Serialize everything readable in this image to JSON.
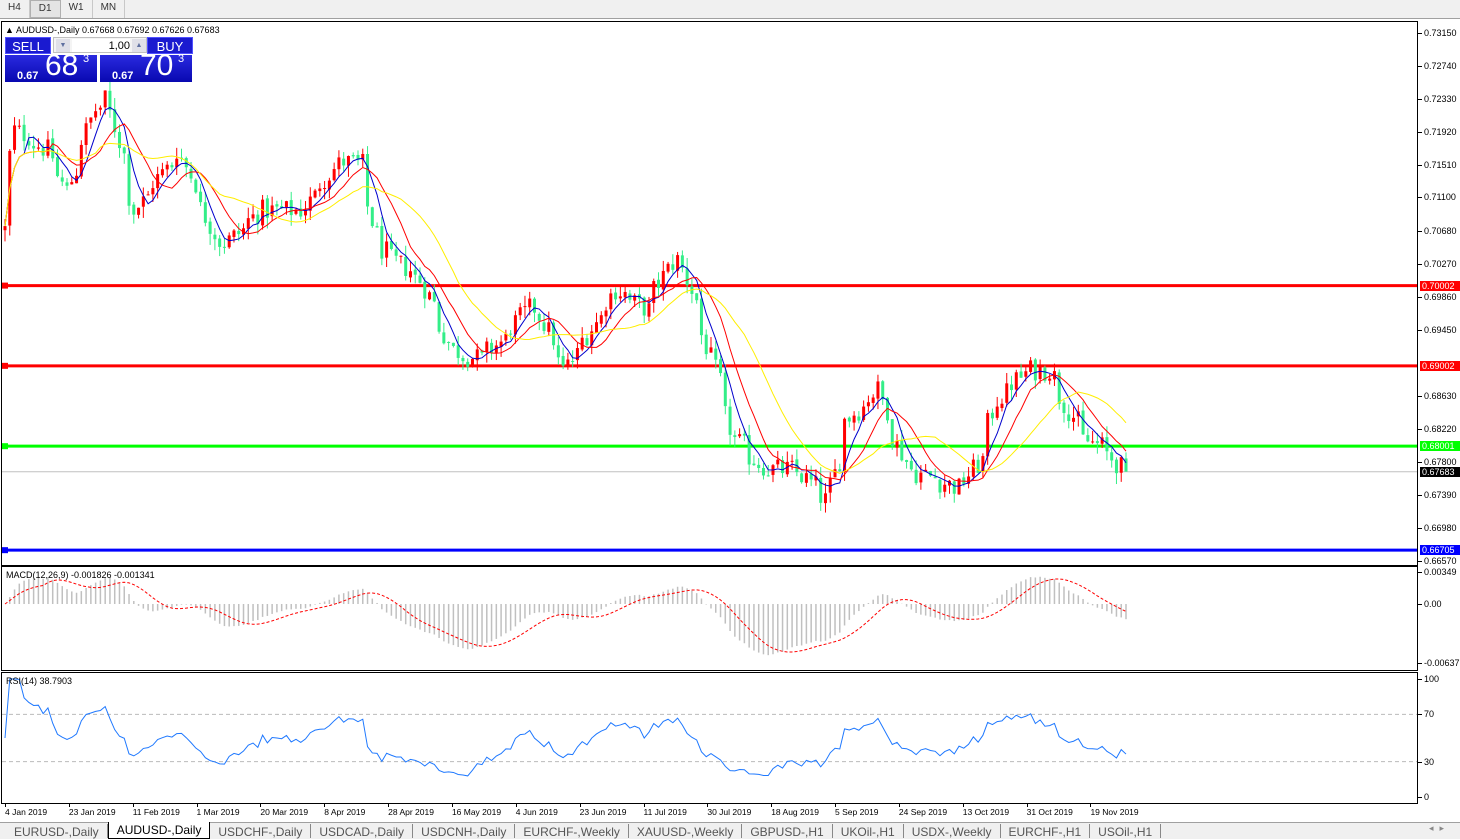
{
  "toolbar": {
    "timeframes": [
      "H4",
      "D1",
      "W1",
      "MN"
    ],
    "active": "D1"
  },
  "chart": {
    "title": "AUDUSD-,Daily  0.67668 0.67692 0.67626 0.67683",
    "price_ticks": [
      "0.73150",
      "0.72740",
      "0.72330",
      "0.71920",
      "0.71510",
      "0.71100",
      "0.70680",
      "0.70270",
      "0.69860",
      "0.69450",
      "0.68630",
      "0.68220",
      "0.67800",
      "0.67390",
      "0.66980",
      "0.66570"
    ],
    "price_tick_values": [
      0.7315,
      0.7274,
      0.7233,
      0.7192,
      0.7151,
      0.711,
      0.7068,
      0.7027,
      0.6986,
      0.6945,
      0.6863,
      0.6822,
      0.678,
      0.6739,
      0.6698,
      0.6657
    ],
    "levels": [
      {
        "label": "0.70002",
        "value": 0.70002,
        "color": "#ff0000"
      },
      {
        "label": "0.69002",
        "value": 0.69002,
        "color": "#ff0000"
      },
      {
        "label": "0.68001",
        "value": 0.68001,
        "color": "#00ff00"
      },
      {
        "label": "0.66705",
        "value": 0.66705,
        "color": "#0000ff"
      }
    ],
    "current_price": {
      "label": "0.67683",
      "value": 0.67683
    },
    "date_labels": [
      "4 Jan 2019",
      "23 Jan 2019",
      "11 Feb 2019",
      "1 Mar 2019",
      "20 Mar 2019",
      "8 Apr 2019",
      "28 Apr 2019",
      "16 May 2019",
      "4 Jun 2019",
      "23 Jun 2019",
      "11 Jul 2019",
      "30 Jul 2019",
      "18 Aug 2019",
      "5 Sep 2019",
      "24 Sep 2019",
      "13 Oct 2019",
      "31 Oct 2019",
      "19 Nov 2019"
    ],
    "colors": {
      "up": "#ff0000",
      "down": "#33ee88",
      "ma_fast": "#0000cc",
      "ma_mid": "#ff0000",
      "ma_slow": "#ffee00"
    }
  },
  "chart_data": {
    "type": "candlestick",
    "close_path": [
      [
        "2019-01-04",
        0.707
      ],
      [
        "2019-01-08",
        0.7194
      ],
      [
        "2019-01-17",
        0.7169
      ],
      [
        "2019-01-23",
        0.7119
      ],
      [
        "2019-01-31",
        0.7219
      ],
      [
        "2019-02-04",
        0.7232
      ],
      [
        "2019-02-12",
        0.7094
      ],
      [
        "2019-02-25",
        0.7169
      ],
      [
        "2019-03-09",
        0.7045
      ],
      [
        "2019-03-21",
        0.7094
      ],
      [
        "2019-04-02",
        0.7094
      ],
      [
        "2019-04-13",
        0.7157
      ],
      [
        "2019-04-19",
        0.7151
      ],
      [
        "2019-04-25",
        0.7045
      ],
      [
        "2019-05-07",
        0.7007
      ],
      [
        "2019-05-16",
        0.692
      ],
      [
        "2019-05-24",
        0.6908
      ],
      [
        "2019-05-31",
        0.6933
      ],
      [
        "2019-06-09",
        0.6982
      ],
      [
        "2019-06-18",
        0.6895
      ],
      [
        "2019-06-24",
        0.6933
      ],
      [
        "2019-07-03",
        0.6995
      ],
      [
        "2019-07-12",
        0.697
      ],
      [
        "2019-07-21",
        0.7045
      ],
      [
        "2019-07-26",
        0.6982
      ],
      [
        "2019-08-01",
        0.6895
      ],
      [
        "2019-08-07",
        0.6808
      ],
      [
        "2019-08-16",
        0.6771
      ],
      [
        "2019-08-25",
        0.6771
      ],
      [
        "2019-09-03",
        0.6733
      ],
      [
        "2019-09-09",
        0.6833
      ],
      [
        "2019-09-18",
        0.687
      ],
      [
        "2019-09-21",
        0.6833
      ],
      [
        "2019-09-27",
        0.6771
      ],
      [
        "2019-10-06",
        0.6758
      ],
      [
        "2019-10-12",
        0.6746
      ],
      [
        "2019-10-18",
        0.6783
      ],
      [
        "2019-10-23",
        0.6858
      ],
      [
        "2019-11-01",
        0.6895
      ],
      [
        "2019-11-07",
        0.6895
      ],
      [
        "2019-11-13",
        0.6845
      ],
      [
        "2019-11-18",
        0.6808
      ],
      [
        "2019-11-24",
        0.6796
      ],
      [
        "2019-11-29",
        0.6768
      ]
    ]
  },
  "trade": {
    "sell_label": "SELL",
    "buy_label": "BUY",
    "lot": "1,00",
    "bid_prefix": "0.67",
    "bid_big": "68",
    "bid_sup": "3",
    "ask_prefix": "0.67",
    "ask_big": "70",
    "ask_sup": "3"
  },
  "macd": {
    "title": "MACD(12,26,9) -0.001826 -0.001341",
    "ticks": [
      "0.00349",
      "0.00",
      "-0.00637"
    ],
    "tick_values": [
      0.00349,
      0,
      -0.00637
    ]
  },
  "rsi": {
    "title": "RSI(14) 38.7903",
    "ticks": [
      "100",
      "70",
      "30",
      "0"
    ],
    "tick_values": [
      100,
      70,
      30,
      0
    ]
  },
  "tabs": [
    "EURUSD-,Daily",
    "AUDUSD-,Daily",
    "USDCHF-,Daily",
    "USDCAD-,Daily",
    "USDCNH-,Daily",
    "EURCHF-,Weekly",
    "XAUUSD-,Weekly",
    "GBPUSD-,H1",
    "UKOil-,H1",
    "USDX-,Weekly",
    "EURCHF-,H1",
    "USOil-,H1"
  ],
  "active_tab": "AUDUSD-,Daily"
}
